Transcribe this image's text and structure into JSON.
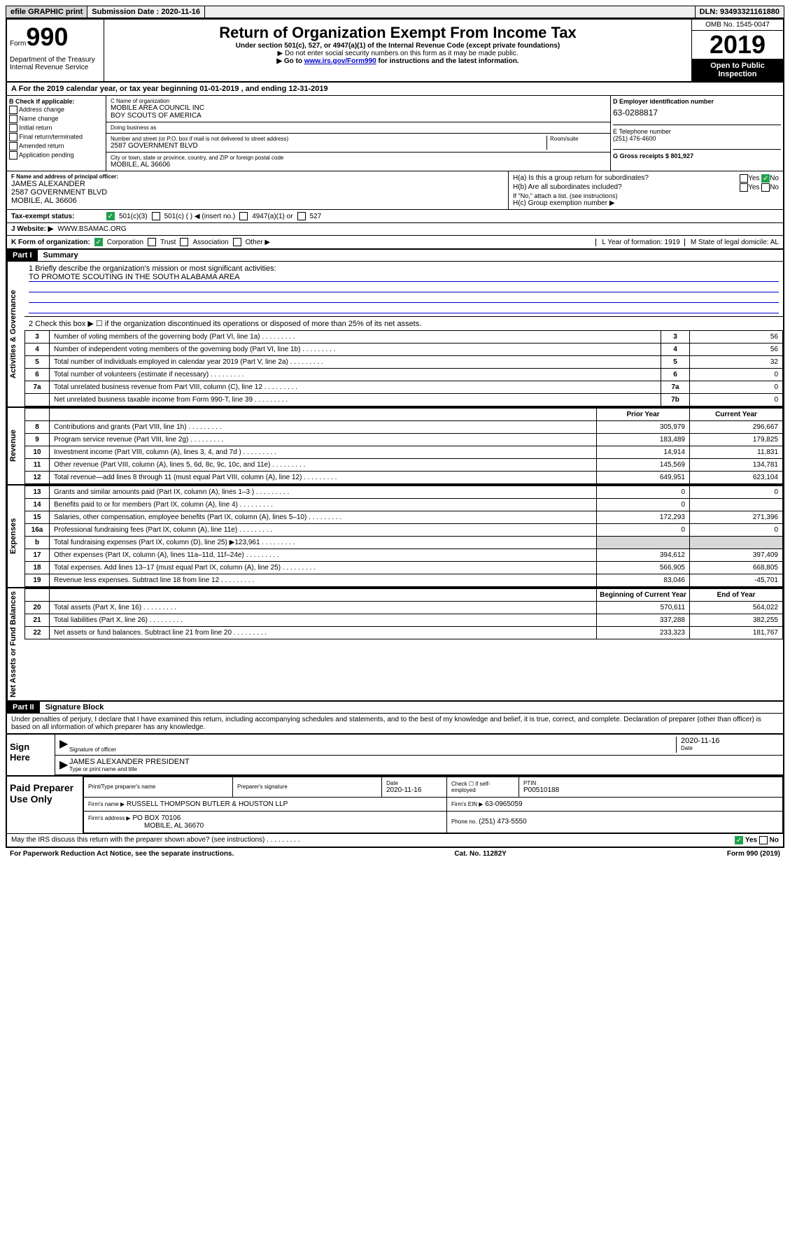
{
  "topbar": {
    "efile": "efile GRAPHIC print",
    "submission_label": "Submission Date : 2020-11-16",
    "dln": "DLN: 93493321161880"
  },
  "header": {
    "form_prefix": "Form",
    "form_number": "990",
    "dept": "Department of the Treasury\nInternal Revenue Service",
    "title": "Return of Organization Exempt From Income Tax",
    "subtitle": "Under section 501(c), 527, or 4947(a)(1) of the Internal Revenue Code (except private foundations)",
    "note1": "▶ Do not enter social security numbers on this form as it may be made public.",
    "note2_pre": "▶ Go to ",
    "note2_link": "www.irs.gov/Form990",
    "note2_post": " for instructions and the latest information.",
    "omb": "OMB No. 1545-0047",
    "year": "2019",
    "inspection": "Open to Public Inspection"
  },
  "period": {
    "line": "A For the 2019 calendar year, or tax year beginning 01-01-2019   , and ending 12-31-2019"
  },
  "section_b": {
    "label": "B Check if applicable:",
    "items": [
      "Address change",
      "Name change",
      "Initial return",
      "Final return/terminated",
      "Amended return",
      "Application pending"
    ]
  },
  "section_c": {
    "name_label": "C Name of organization",
    "name": "MOBILE AREA COUNCIL INC\nBOY SCOUTS OF AMERICA",
    "dba_label": "Doing business as",
    "dba": "",
    "addr_label": "Number and street (or P.O. box if mail is not delivered to street address)",
    "room_label": "Room/suite",
    "addr": "2587 GOVERNMENT BLVD",
    "city_label": "City or town, state or province, country, and ZIP or foreign postal code",
    "city": "MOBILE, AL  36606"
  },
  "section_d": {
    "label": "D Employer identification number",
    "ein": "63-0288817",
    "phone_label": "E Telephone number",
    "phone": "(251) 476-4600",
    "gross_label": "G Gross receipts $ 801,927"
  },
  "officer": {
    "label": "F  Name and address of principal officer:",
    "name": "JAMES ALEXANDER",
    "addr1": "2587 GOVERNMENT BLVD",
    "addr2": "MOBILE, AL  36606"
  },
  "h_section": {
    "ha": "H(a)  Is this a group return for subordinates?",
    "ha_answer_yes": "Yes",
    "ha_answer_no": "No",
    "hb": "H(b)  Are all subordinates included?",
    "hb_note": "If \"No,\" attach a list. (see instructions)",
    "hc": "H(c)  Group exemption number ▶"
  },
  "status": {
    "label": "Tax-exempt status:",
    "opt1": "501(c)(3)",
    "opt2": "501(c) (  ) ◀ (insert no.)",
    "opt3": "4947(a)(1) or",
    "opt4": "527"
  },
  "website": {
    "label": "J  Website: ▶",
    "value": "WWW.BSAMAC.ORG"
  },
  "form_org": {
    "label": "K Form of organization:",
    "corp": "Corporation",
    "trust": "Trust",
    "assoc": "Association",
    "other": "Other ▶",
    "year_label": "L Year of formation: 1919",
    "state_label": "M State of legal domicile: AL"
  },
  "part1": {
    "header": "Part I",
    "title": "Summary",
    "line1_label": "1  Briefly describe the organization's mission or most significant activities:",
    "mission": "TO PROMOTE SCOUTING IN THE SOUTH ALABAMA AREA",
    "line2": "2   Check this box ▶ ☐  if the organization discontinued its operations or disposed of more than 25% of its net assets.",
    "governance_label": "Activities & Governance",
    "revenue_label": "Revenue",
    "expenses_label": "Expenses",
    "netassets_label": "Net Assets or Fund Balances",
    "prior_year": "Prior Year",
    "current_year": "Current Year",
    "begin_year": "Beginning of Current Year",
    "end_year": "End of Year",
    "rows_gov": [
      {
        "n": "3",
        "desc": "Number of voting members of the governing body (Part VI, line 1a)",
        "box": "3",
        "val": "56"
      },
      {
        "n": "4",
        "desc": "Number of independent voting members of the governing body (Part VI, line 1b)",
        "box": "4",
        "val": "56"
      },
      {
        "n": "5",
        "desc": "Total number of individuals employed in calendar year 2019 (Part V, line 2a)",
        "box": "5",
        "val": "32"
      },
      {
        "n": "6",
        "desc": "Total number of volunteers (estimate if necessary)",
        "box": "6",
        "val": "0"
      },
      {
        "n": "7a",
        "desc": "Total unrelated business revenue from Part VIII, column (C), line 12",
        "box": "7a",
        "val": "0"
      },
      {
        "n": "",
        "desc": "Net unrelated business taxable income from Form 990-T, line 39",
        "box": "7b",
        "val": "0"
      }
    ],
    "rows_rev": [
      {
        "n": "8",
        "desc": "Contributions and grants (Part VIII, line 1h)",
        "prior": "305,979",
        "curr": "296,667"
      },
      {
        "n": "9",
        "desc": "Program service revenue (Part VIII, line 2g)",
        "prior": "183,489",
        "curr": "179,825"
      },
      {
        "n": "10",
        "desc": "Investment income (Part VIII, column (A), lines 3, 4, and 7d )",
        "prior": "14,914",
        "curr": "11,831"
      },
      {
        "n": "11",
        "desc": "Other revenue (Part VIII, column (A), lines 5, 6d, 8c, 9c, 10c, and 11e)",
        "prior": "145,569",
        "curr": "134,781"
      },
      {
        "n": "12",
        "desc": "Total revenue—add lines 8 through 11 (must equal Part VIII, column (A), line 12)",
        "prior": "649,951",
        "curr": "623,104"
      }
    ],
    "rows_exp": [
      {
        "n": "13",
        "desc": "Grants and similar amounts paid (Part IX, column (A), lines 1–3 )",
        "prior": "0",
        "curr": "0"
      },
      {
        "n": "14",
        "desc": "Benefits paid to or for members (Part IX, column (A), line 4)",
        "prior": "0",
        "curr": ""
      },
      {
        "n": "15",
        "desc": "Salaries, other compensation, employee benefits (Part IX, column (A), lines 5–10)",
        "prior": "172,293",
        "curr": "271,396"
      },
      {
        "n": "16a",
        "desc": "Professional fundraising fees (Part IX, column (A), line 11e)",
        "prior": "0",
        "curr": "0"
      },
      {
        "n": "b",
        "desc": "Total fundraising expenses (Part IX, column (D), line 25) ▶123,961",
        "prior": "",
        "curr": "",
        "shaded": true
      },
      {
        "n": "17",
        "desc": "Other expenses (Part IX, column (A), lines 11a–11d, 11f–24e)",
        "prior": "394,612",
        "curr": "397,409"
      },
      {
        "n": "18",
        "desc": "Total expenses. Add lines 13–17 (must equal Part IX, column (A), line 25)",
        "prior": "566,905",
        "curr": "668,805"
      },
      {
        "n": "19",
        "desc": "Revenue less expenses. Subtract line 18 from line 12",
        "prior": "83,046",
        "curr": "-45,701"
      }
    ],
    "rows_net": [
      {
        "n": "20",
        "desc": "Total assets (Part X, line 16)",
        "prior": "570,611",
        "curr": "564,022"
      },
      {
        "n": "21",
        "desc": "Total liabilities (Part X, line 26)",
        "prior": "337,288",
        "curr": "382,255"
      },
      {
        "n": "22",
        "desc": "Net assets or fund balances. Subtract line 21 from line 20",
        "prior": "233,323",
        "curr": "181,767"
      }
    ]
  },
  "part2": {
    "header": "Part II",
    "title": "Signature Block",
    "perjury": "Under penalties of perjury, I declare that I have examined this return, including accompanying schedules and statements, and to the best of my knowledge and belief, it is true, correct, and complete. Declaration of preparer (other than officer) is based on all information of which preparer has any knowledge.",
    "sign_here": "Sign Here",
    "sig_officer": "Signature of officer",
    "sig_date": "2020-11-16",
    "date_label": "Date",
    "officer_name": "JAMES ALEXANDER  PRESIDENT",
    "type_name": "Type or print name and title"
  },
  "preparer": {
    "label": "Paid Preparer Use Only",
    "print_name_label": "Print/Type preparer's name",
    "sig_label": "Preparer's signature",
    "date_label": "Date",
    "date": "2020-11-16",
    "check_label": "Check ☐ if self-employed",
    "ptin_label": "PTIN",
    "ptin": "P00510188",
    "firm_name_label": "Firm's name    ▶",
    "firm_name": "RUSSELL THOMPSON BUTLER & HOUSTON LLP",
    "firm_ein_label": "Firm's EIN ▶",
    "firm_ein": "63-0965059",
    "firm_addr_label": "Firm's address ▶",
    "firm_addr": "PO BOX 70106",
    "firm_city": "MOBILE, AL  36670",
    "phone_label": "Phone no.",
    "phone": "(251) 473-5550"
  },
  "footer": {
    "discuss": "May the IRS discuss this return with the preparer shown above? (see instructions)",
    "yes": "Yes",
    "no": "No",
    "paperwork": "For Paperwork Reduction Act Notice, see the separate instructions.",
    "cat": "Cat. No. 11282Y",
    "form": "Form 990 (2019)"
  }
}
